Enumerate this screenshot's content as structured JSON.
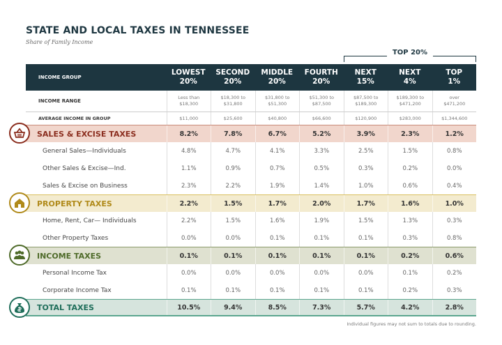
{
  "title": "STATE AND LOCAL TAXES IN TENNESSEE",
  "subtitle": "Share of Family Income",
  "top_group_label": "TOP 20%",
  "header": {
    "label": "INCOME GROUP",
    "columns": [
      "LOWEST\n20%",
      "SECOND\n20%",
      "MIDDLE\n20%",
      "FOURTH\n20%",
      "NEXT\n15%",
      "NEXT\n4%",
      "TOP\n1%"
    ]
  },
  "income_range": {
    "label": "INCOME RANGE",
    "values": [
      "Less than\n$18,300",
      "$18,300 to\n$31,800",
      "$31,800 to\n$51,300",
      "$51,300 to\n$87,500",
      "$87,500 to\n$189,300",
      "$189,300 to\n$471,200",
      "over\n$471,200"
    ]
  },
  "average_income": {
    "label": "AVERAGE INCOME IN GROUP",
    "values": [
      "$11,000",
      "$25,600",
      "$40,800",
      "$66,600",
      "$120,900",
      "$283,000",
      "$1,344,600"
    ]
  },
  "categories": [
    {
      "label": "SALES & EXCISE TAXES",
      "icon": "basket-icon",
      "color": "#8b2e1f",
      "bg": "#f1d6cc",
      "border": "#c98a7a",
      "values": [
        "8.2%",
        "7.8%",
        "6.7%",
        "5.2%",
        "3.9%",
        "2.3%",
        "1.2%"
      ],
      "rows": [
        {
          "label": "General Sales—Individuals",
          "values": [
            "4.8%",
            "4.7%",
            "4.1%",
            "3.3%",
            "2.5%",
            "1.5%",
            "0.8%"
          ]
        },
        {
          "label": "Other Sales & Excise—Ind.",
          "values": [
            "1.1%",
            "0.9%",
            "0.7%",
            "0.5%",
            "0.3%",
            "0.2%",
            "0.0%"
          ]
        },
        {
          "label": "Sales & Excise on Business",
          "values": [
            "2.3%",
            "2.2%",
            "1.9%",
            "1.4%",
            "1.0%",
            "0.6%",
            "0.4%"
          ]
        }
      ]
    },
    {
      "label": "PROPERTY TAXES",
      "icon": "house-icon",
      "color": "#b08a1a",
      "bg": "#f3ebcf",
      "border": "#d9bf5f",
      "values": [
        "2.2%",
        "1.5%",
        "1.7%",
        "2.0%",
        "1.7%",
        "1.6%",
        "1.0%"
      ],
      "rows": [
        {
          "label": "Home, Rent, Car— Individuals",
          "values": [
            "2.2%",
            "1.5%",
            "1.6%",
            "1.9%",
            "1.5%",
            "1.3%",
            "0.3%"
          ]
        },
        {
          "label": "Other Property Taxes",
          "values": [
            "0.0%",
            "0.0%",
            "0.1%",
            "0.1%",
            "0.1%",
            "0.3%",
            "0.8%"
          ]
        }
      ]
    },
    {
      "label": "INCOME TAXES",
      "icon": "people-icon",
      "color": "#4f6b2a",
      "bg": "#dfe1d0",
      "border": "#8a9a6a",
      "values": [
        "0.1%",
        "0.1%",
        "0.1%",
        "0.1%",
        "0.1%",
        "0.2%",
        "0.6%"
      ],
      "rows": [
        {
          "label": "Personal Income Tax",
          "values": [
            "0.0%",
            "0.0%",
            "0.0%",
            "0.0%",
            "0.0%",
            "0.1%",
            "0.2%"
          ]
        },
        {
          "label": "Corporate Income Tax",
          "values": [
            "0.1%",
            "0.1%",
            "0.1%",
            "0.1%",
            "0.1%",
            "0.2%",
            "0.3%"
          ]
        }
      ]
    },
    {
      "label": "TOTAL TAXES",
      "icon": "money-bag-icon",
      "color": "#1f6e5a",
      "bg": "#d6e4dd",
      "border": "#5aa58e",
      "values": [
        "10.5%",
        "9.4%",
        "8.5%",
        "7.3%",
        "5.7%",
        "4.2%",
        "2.8%"
      ],
      "rows": []
    }
  ],
  "footnote": "Individual figures may not sum to totals due to rounding."
}
